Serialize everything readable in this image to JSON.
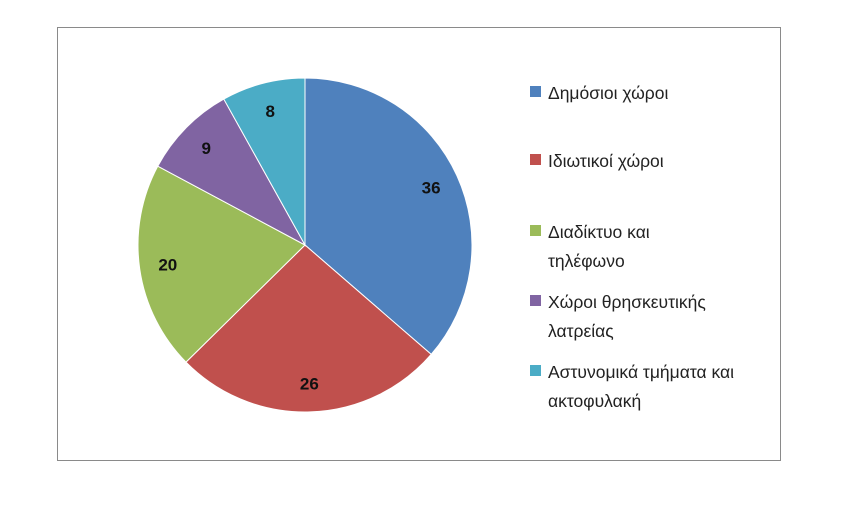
{
  "chart_data": {
    "type": "pie",
    "title": "",
    "categories": [
      "Δημόσιοι χώροι",
      "Ιδιωτικοί χώροι",
      "Διαδίκτυο και τηλέφωνο",
      "Χώροι θρησκευτικής λατρείας",
      "Αστυνομικά τμήματα και ακτοφυλακή"
    ],
    "values": [
      36,
      26,
      20,
      9,
      8
    ],
    "colors": [
      "#4F81BD",
      "#C0504D",
      "#9BBB59",
      "#8064A2",
      "#4BACC6"
    ],
    "data_labels": [
      "36",
      "26",
      "20",
      "9",
      "8"
    ],
    "legend": "right"
  }
}
